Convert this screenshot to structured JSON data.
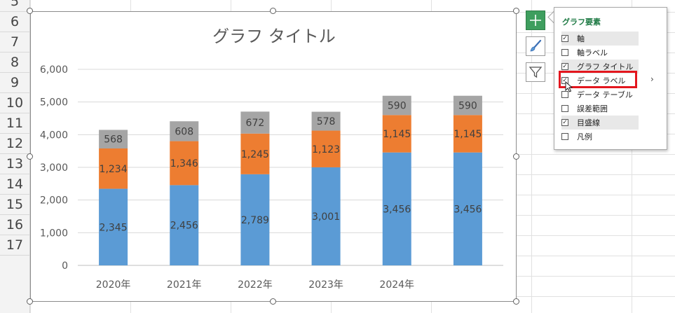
{
  "sheet": {
    "rows": [
      "5",
      "6",
      "7",
      "8",
      "9",
      "10",
      "11",
      "12",
      "13",
      "14",
      "15",
      "16",
      "17"
    ]
  },
  "chart_data": {
    "type": "bar",
    "stacked": true,
    "title": "グラフ タイトル",
    "categories": [
      "2020年",
      "2021年",
      "2022年",
      "2023年",
      "2024年",
      ""
    ],
    "series": [
      {
        "values": [
          2345,
          2456,
          2789,
          3001,
          3456,
          3456
        ],
        "color": "#5b9bd5"
      },
      {
        "values": [
          1234,
          1346,
          1245,
          1123,
          1145,
          1145
        ],
        "color": "#ed7d31"
      },
      {
        "values": [
          568,
          608,
          672,
          578,
          590,
          590
        ],
        "color": "#a5a5a5"
      }
    ],
    "data_labels": [
      [
        "2,345",
        "2,456",
        "2,789",
        "3,001",
        "3,456",
        "3,456"
      ],
      [
        "1,234",
        "1,346",
        "1,245",
        "1,123",
        "1,145",
        "1,145"
      ],
      [
        "568",
        "608",
        "672",
        "578",
        "590",
        "590"
      ]
    ],
    "ylim": [
      0,
      6000
    ],
    "yticks": [
      0,
      1000,
      2000,
      3000,
      4000,
      5000,
      6000
    ],
    "ytick_labels": [
      "0",
      "1,000",
      "2,000",
      "3,000",
      "4,000",
      "5,000",
      "6,000"
    ],
    "grid": true,
    "legend": "none",
    "xlabel": "",
    "ylabel": ""
  },
  "side_buttons": {
    "chart_elements": "plus-icon",
    "chart_styles": "brush-icon",
    "chart_filters": "funnel-icon"
  },
  "panel": {
    "title": "グラフ要素",
    "items": [
      {
        "label": "軸",
        "checked": true,
        "highlight": true
      },
      {
        "label": "軸ラベル",
        "checked": false,
        "highlight": false
      },
      {
        "label": "グラフ タイトル",
        "checked": true,
        "highlight": true
      },
      {
        "label": "データ ラベル",
        "checked": true,
        "highlight": false
      },
      {
        "label": "データ テーブル",
        "checked": false,
        "highlight": false
      },
      {
        "label": "誤差範囲",
        "checked": false,
        "highlight": false
      },
      {
        "label": "目盛線",
        "checked": true,
        "highlight": true
      },
      {
        "label": "凡例",
        "checked": false,
        "highlight": false
      }
    ],
    "submenu_arrow": "›"
  },
  "colors": {
    "accent_green": "#3e9e5e",
    "highlight_red": "#e3161e"
  }
}
